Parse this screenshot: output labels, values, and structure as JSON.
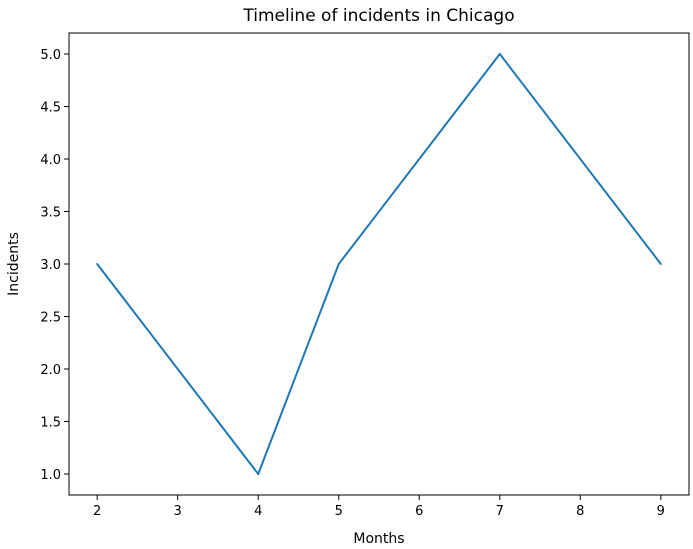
{
  "chart_data": {
    "type": "line",
    "title": "Timeline of incidents in Chicago",
    "xlabel": "Months",
    "ylabel": "Incidents",
    "x": [
      2,
      4,
      5,
      7,
      9
    ],
    "series": [
      {
        "values": [
          3,
          1,
          3,
          5,
          3
        ],
        "color": "#1f77b4"
      }
    ],
    "xlim": [
      1.65,
      9.35
    ],
    "ylim": [
      0.8,
      5.2
    ],
    "xticks": [
      2,
      3,
      4,
      5,
      6,
      7,
      8,
      9
    ],
    "xtick_labels": [
      "2",
      "3",
      "4",
      "5",
      "6",
      "7",
      "8",
      "9"
    ],
    "yticks": [
      1.0,
      1.5,
      2.0,
      2.5,
      3.0,
      3.5,
      4.0,
      4.5,
      5.0
    ],
    "ytick_labels": [
      "1.0",
      "1.5",
      "2.0",
      "2.5",
      "3.0",
      "3.5",
      "4.0",
      "4.5",
      "5.0"
    ],
    "grid": false,
    "legend": false
  }
}
